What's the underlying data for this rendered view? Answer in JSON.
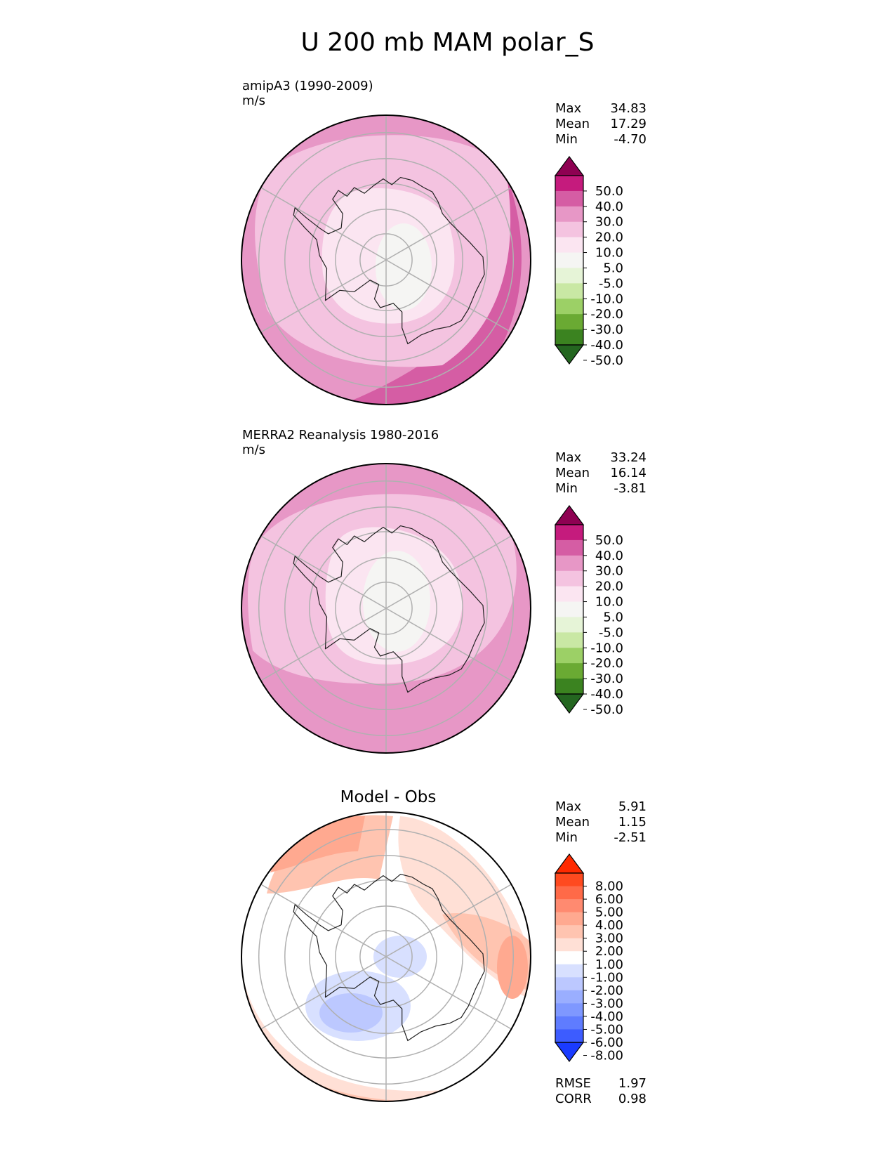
{
  "title": "U 200 mb MAM polar_S",
  "panels": [
    {
      "label": "amipA3 (1990-2009)",
      "units": "m/s",
      "stats": {
        "max_label": "Max",
        "max": "34.83",
        "mean_label": "Mean",
        "mean": "17.29",
        "min_label": "Min",
        "min": "-4.70"
      }
    },
    {
      "label": "MERRA2 Reanalysis 1980-2016",
      "units": "m/s",
      "stats": {
        "max_label": "Max",
        "max": "33.24",
        "mean_label": "Mean",
        "mean": "16.14",
        "min_label": "Min",
        "min": "-3.81"
      }
    },
    {
      "label": "Model - Obs",
      "stats": {
        "max_label": "Max",
        "max": "5.91",
        "mean_label": "Mean",
        "mean": "1.15",
        "min_label": "Min",
        "min": "-2.51"
      },
      "metrics": {
        "rmse_label": "RMSE",
        "rmse": "1.97",
        "corr_label": "CORR",
        "corr": "0.98"
      }
    }
  ],
  "colorbars": {
    "field": {
      "ticks": [
        "50.0",
        "40.0",
        "30.0",
        "20.0",
        "10.0",
        "5.0",
        "-5.0",
        "-10.0",
        "-20.0",
        "-30.0",
        "-40.0",
        "-50.0"
      ],
      "colors": [
        "#8e0152",
        "#c51b7d",
        "#d55da4",
        "#e797c6",
        "#f4c3e0",
        "#fbe5f1",
        "#f5f5f3",
        "#e6f4d7",
        "#c9e8a4",
        "#9cd066",
        "#6aaa33",
        "#3b8320",
        "#246620"
      ]
    },
    "diff": {
      "ticks": [
        "8.00",
        "6.00",
        "5.00",
        "4.00",
        "3.00",
        "2.00",
        "1.00",
        "-1.00",
        "-2.00",
        "-3.00",
        "-4.00",
        "-5.00",
        "-6.00",
        "-8.00"
      ],
      "colors": [
        "#ff2a00",
        "#ff4a1f",
        "#ff6a48",
        "#ff8a70",
        "#ffa990",
        "#ffc4b0",
        "#ffe0d6",
        "#ffffff",
        "#d8e0ff",
        "#bcc8ff",
        "#9aaeff",
        "#7f98ff",
        "#5f7cff",
        "#3d5cff",
        "#1a3bff"
      ]
    }
  },
  "chart_data": [
    {
      "type": "heatmap",
      "title": "amipA3 (1990-2009)",
      "units": "m/s",
      "projection": "south polar stereographic",
      "levels": [
        -50,
        -40,
        -30,
        -20,
        -10,
        -5,
        5,
        10,
        20,
        30,
        40,
        50
      ],
      "max": 34.83,
      "mean": 17.29,
      "min": -4.7
    },
    {
      "type": "heatmap",
      "title": "MERRA2 Reanalysis 1980-2016",
      "units": "m/s",
      "projection": "south polar stereographic",
      "levels": [
        -50,
        -40,
        -30,
        -20,
        -10,
        -5,
        5,
        10,
        20,
        30,
        40,
        50
      ],
      "max": 33.24,
      "mean": 16.14,
      "min": -3.81
    },
    {
      "type": "heatmap",
      "title": "Model - Obs",
      "projection": "south polar stereographic",
      "levels": [
        -8,
        -6,
        -5,
        -4,
        -3,
        -2,
        -1,
        1,
        2,
        3,
        4,
        5,
        6,
        8
      ],
      "max": 5.91,
      "mean": 1.15,
      "min": -2.51,
      "rmse": 1.97,
      "corr": 0.98
    }
  ]
}
